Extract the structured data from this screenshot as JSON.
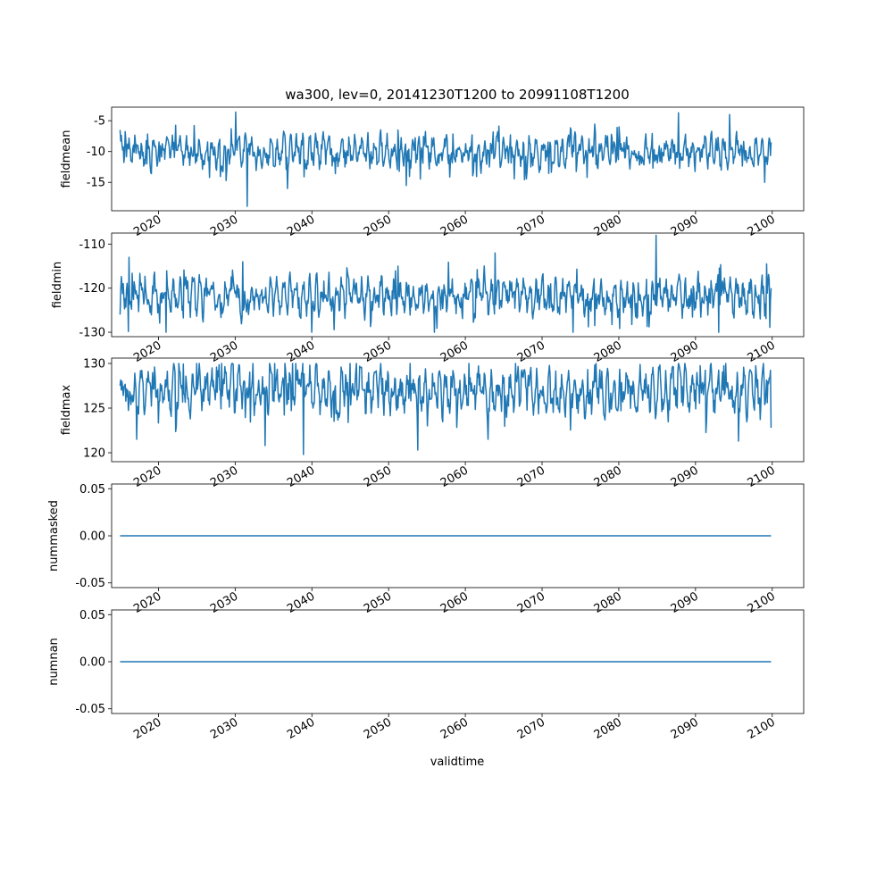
{
  "title": "wa300, lev=0, 20141230T1200 to 20991108T1200",
  "xlabel": "validtime",
  "x_ticks": [
    "2020",
    "2030",
    "2040",
    "2050",
    "2060",
    "2070",
    "2080",
    "2090",
    "2100"
  ],
  "line_color": "#1f77b4",
  "chart_data": [
    {
      "type": "line",
      "ylabel": "fieldmean",
      "x_range": [
        "2014-12-30",
        "2099-11-08"
      ],
      "xlim": [
        2013.9,
        2104.1
      ],
      "ylim": [
        -19.6,
        -2.8
      ],
      "y_ticks": [
        -5,
        -10,
        -15
      ],
      "summary": {
        "min": -18.9,
        "max": -3.6,
        "typical_low": -13,
        "typical_high": -7
      },
      "series": [
        {
          "x": [
            2015.0,
            2018.5,
            2022.0,
            2030.1,
            2031.6,
            2036.8,
            2045.0,
            2052.3,
            2060.2,
            2071.0,
            2080.0,
            2087.8,
            2094.4,
            2099.0,
            2099.85
          ],
          "values": [
            -6.5,
            -12.0,
            -8.5,
            -3.6,
            -18.9,
            -16.0,
            -9.0,
            -15.5,
            -10.0,
            -8.5,
            -6.0,
            -3.7,
            -4.0,
            -15.0,
            -8.5
          ]
        }
      ]
    },
    {
      "type": "line",
      "ylabel": "fieldmin",
      "x_range": [
        "2014-12-30",
        "2099-11-08"
      ],
      "xlim": [
        2013.9,
        2104.1
      ],
      "ylim": [
        -131.0,
        -107.5
      ],
      "y_ticks": [
        -110,
        -120,
        -130
      ],
      "summary": {
        "min": -130.0,
        "max": -108.0,
        "typical_low": -127,
        "typical_high": -117
      },
      "series": [
        {
          "x": [
            2015.0,
            2016.2,
            2021.0,
            2031.0,
            2040.0,
            2051.2,
            2056.0,
            2063.9,
            2074.0,
            2084.9,
            2093.0,
            2099.3,
            2099.85
          ],
          "values": [
            -126.0,
            -113.0,
            -130.0,
            -114.0,
            -130.0,
            -115.0,
            -130.0,
            -112.0,
            -130.0,
            -108.0,
            -130.0,
            -114.5,
            -120.0
          ]
        }
      ]
    },
    {
      "type": "line",
      "ylabel": "fieldmax",
      "x_range": [
        "2014-12-30",
        "2099-11-08"
      ],
      "xlim": [
        2013.9,
        2104.1
      ],
      "ylim": [
        119.0,
        130.6
      ],
      "y_ticks": [
        120,
        125,
        130
      ],
      "summary": {
        "min": 119.8,
        "max": 130.0,
        "typical_low": 124,
        "typical_high": 130
      },
      "series": [
        {
          "x": [
            2015.0,
            2017.2,
            2025.0,
            2033.9,
            2038.9,
            2045.0,
            2053.8,
            2063.0,
            2077.0,
            2095.6,
            2099.85
          ],
          "values": [
            127.5,
            121.5,
            130.0,
            120.8,
            119.8,
            130.0,
            120.3,
            121.5,
            130.0,
            121.3,
            122.8
          ]
        }
      ]
    },
    {
      "type": "line",
      "ylabel": "nummasked",
      "x_range": [
        "2014-12-30",
        "2099-11-08"
      ],
      "xlim": [
        2013.9,
        2104.1
      ],
      "ylim": [
        -0.055,
        0.055
      ],
      "y_ticks": [
        "0.05",
        "0.00",
        "-0.05"
      ],
      "series": [
        {
          "x": [
            2015.0,
            2099.85
          ],
          "values": [
            0.0,
            0.0
          ]
        }
      ]
    },
    {
      "type": "line",
      "ylabel": "numnan",
      "x_range": [
        "2014-12-30",
        "2099-11-08"
      ],
      "xlim": [
        2013.9,
        2104.1
      ],
      "ylim": [
        -0.055,
        0.055
      ],
      "y_ticks": [
        "0.05",
        "0.00",
        "-0.05"
      ],
      "series": [
        {
          "x": [
            2015.0,
            2099.85
          ],
          "values": [
            0.0,
            0.0
          ]
        }
      ]
    }
  ]
}
